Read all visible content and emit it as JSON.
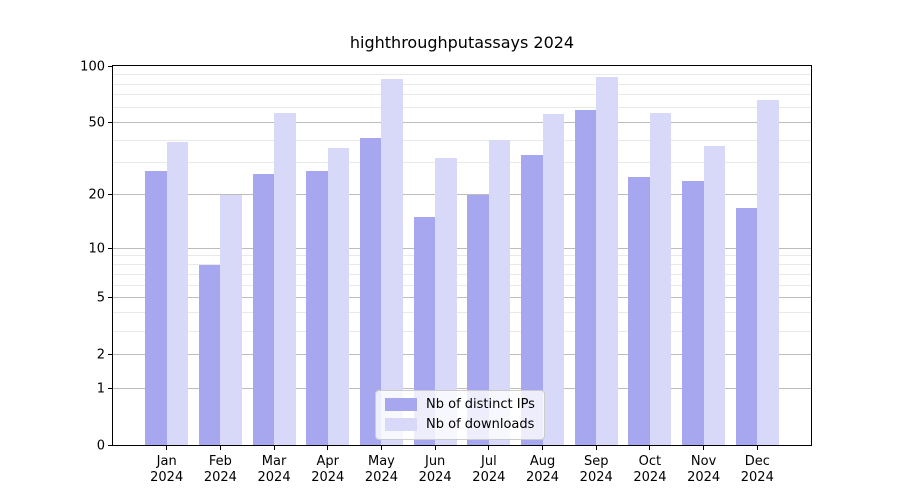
{
  "title": "highthroughputassays 2024",
  "chart_data": {
    "type": "bar",
    "title": "highthroughputassays 2024",
    "year": "2024",
    "months": [
      "Jan",
      "Feb",
      "Mar",
      "Apr",
      "May",
      "Jun",
      "Jul",
      "Aug",
      "Sep",
      "Oct",
      "Nov",
      "Dec"
    ],
    "categories": [
      "Jan 2024",
      "Feb 2024",
      "Mar 2024",
      "Apr 2024",
      "May 2024",
      "Jun 2024",
      "Jul 2024",
      "Aug 2024",
      "Sep 2024",
      "Oct 2024",
      "Nov 2024",
      "Dec 2024"
    ],
    "series": [
      {
        "name": "Nb of distinct IPs",
        "key": "distinct-ips",
        "color": "#a7a7f0",
        "values": [
          27,
          8,
          26,
          27,
          41,
          15,
          20,
          33,
          58,
          25,
          24,
          17
        ]
      },
      {
        "name": "Nb of downloads",
        "key": "downloads",
        "color": "#d8d8f9",
        "values": [
          39,
          20,
          56,
          36,
          85,
          32,
          40,
          55,
          87,
          56,
          37,
          66
        ]
      }
    ],
    "xlabel": "",
    "ylabel": "",
    "ylim": [
      0,
      100
    ],
    "y_scale": "log10(1+x)",
    "y_ticks": [
      0,
      1,
      2,
      5,
      10,
      20,
      50,
      100
    ],
    "y_minor_gridlines": [
      3,
      4,
      6,
      7,
      8,
      9,
      30,
      40,
      60,
      70,
      80,
      90
    ],
    "grid": true,
    "legend_position": "lower center"
  },
  "colors": {
    "background": "#ffffff",
    "bar_distinct_ips": "#a7a7f0",
    "bar_downloads": "#d8d8f9",
    "grid_major": "#bcbcbc",
    "grid_minor": "#e9e9e9",
    "axis": "#000000",
    "legend_border": "#cccccc",
    "text": "#000000"
  }
}
